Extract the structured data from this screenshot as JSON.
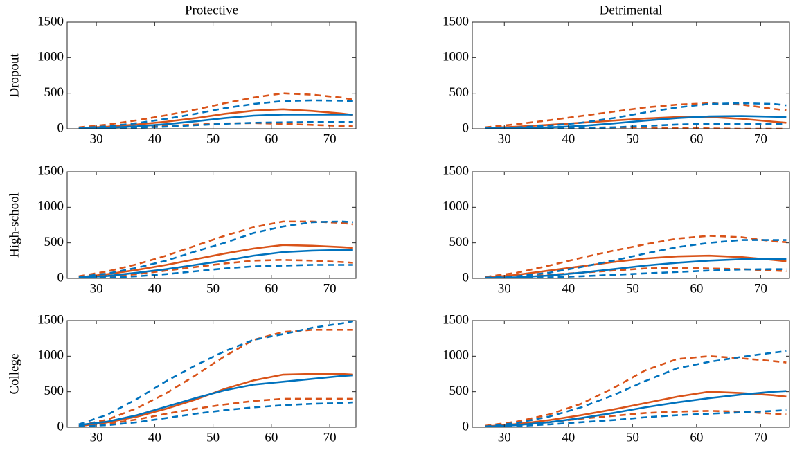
{
  "chart_data": [
    {
      "type": "line",
      "title": "Protective",
      "ylabel": "Dropout",
      "x": [
        27,
        32,
        37,
        42,
        47,
        52,
        57,
        62,
        67,
        72,
        74
      ],
      "series": [
        {
          "color": "#d95319",
          "dash": false,
          "values": [
            10,
            30,
            60,
            100,
            150,
            210,
            255,
            275,
            250,
            215,
            195
          ]
        },
        {
          "color": "#d95319",
          "dash": true,
          "values": [
            20,
            60,
            120,
            190,
            270,
            360,
            440,
            500,
            480,
            440,
            410
          ]
        },
        {
          "color": "#d95319",
          "dash": true,
          "values": [
            0,
            10,
            25,
            40,
            60,
            75,
            80,
            70,
            55,
            40,
            35
          ]
        },
        {
          "color": "#0072bd",
          "dash": false,
          "values": [
            5,
            15,
            35,
            65,
            105,
            150,
            185,
            200,
            200,
            200,
            200
          ]
        },
        {
          "color": "#0072bd",
          "dash": true,
          "values": [
            10,
            35,
            80,
            140,
            210,
            290,
            350,
            390,
            400,
            395,
            390
          ]
        },
        {
          "color": "#0072bd",
          "dash": true,
          "values": [
            0,
            5,
            15,
            30,
            50,
            70,
            85,
            90,
            95,
            95,
            95
          ]
        }
      ],
      "xlim": [
        25,
        74.5
      ],
      "xticks": [
        30,
        40,
        50,
        60,
        70
      ],
      "ylim": [
        0,
        1500
      ],
      "yticks": [
        0,
        500,
        1000,
        1500
      ]
    },
    {
      "type": "line",
      "title": "Detrimental",
      "x": [
        27,
        32,
        37,
        42,
        47,
        52,
        57,
        62,
        67,
        72,
        74
      ],
      "series": [
        {
          "color": "#d95319",
          "dash": false,
          "values": [
            10,
            30,
            55,
            85,
            115,
            145,
            165,
            165,
            140,
            100,
            85
          ]
        },
        {
          "color": "#d95319",
          "dash": true,
          "values": [
            20,
            65,
            120,
            180,
            240,
            300,
            340,
            360,
            340,
            280,
            260
          ]
        },
        {
          "color": "#d95319",
          "dash": true,
          "values": [
            0,
            5,
            10,
            15,
            20,
            20,
            15,
            5,
            0,
            0,
            0
          ]
        },
        {
          "color": "#0072bd",
          "dash": false,
          "values": [
            5,
            10,
            20,
            40,
            75,
            115,
            150,
            175,
            180,
            170,
            165
          ]
        },
        {
          "color": "#0072bd",
          "dash": true,
          "values": [
            5,
            20,
            45,
            85,
            150,
            230,
            300,
            350,
            360,
            350,
            330
          ]
        },
        {
          "color": "#0072bd",
          "dash": true,
          "values": [
            0,
            2,
            5,
            10,
            20,
            40,
            60,
            70,
            70,
            70,
            65
          ]
        }
      ],
      "xlim": [
        25,
        74.5
      ],
      "xticks": [
        30,
        40,
        50,
        60,
        70
      ],
      "ylim": [
        0,
        1500
      ],
      "yticks": [
        0,
        500,
        1000,
        1500
      ]
    },
    {
      "type": "line",
      "ylabel": "High-school",
      "x": [
        27,
        32,
        37,
        42,
        47,
        52,
        57,
        62,
        67,
        72,
        74
      ],
      "series": [
        {
          "color": "#d95319",
          "dash": false,
          "values": [
            15,
            60,
            120,
            190,
            270,
            350,
            420,
            470,
            460,
            440,
            430
          ]
        },
        {
          "color": "#d95319",
          "dash": true,
          "values": [
            30,
            100,
            200,
            320,
            460,
            600,
            720,
            800,
            800,
            780,
            760
          ]
        },
        {
          "color": "#d95319",
          "dash": true,
          "values": [
            5,
            25,
            60,
            110,
            160,
            210,
            250,
            260,
            250,
            230,
            220
          ]
        },
        {
          "color": "#0072bd",
          "dash": false,
          "values": [
            10,
            35,
            80,
            130,
            190,
            250,
            320,
            370,
            390,
            400,
            400
          ]
        },
        {
          "color": "#0072bd",
          "dash": true,
          "values": [
            20,
            70,
            150,
            250,
            380,
            500,
            640,
            730,
            790,
            800,
            790
          ]
        },
        {
          "color": "#0072bd",
          "dash": true,
          "values": [
            0,
            10,
            30,
            60,
            100,
            140,
            170,
            180,
            190,
            190,
            190
          ]
        }
      ],
      "xlim": [
        25,
        74.5
      ],
      "xticks": [
        30,
        40,
        50,
        60,
        70
      ],
      "ylim": [
        0,
        1500
      ],
      "yticks": [
        0,
        500,
        1000,
        1500
      ]
    },
    {
      "type": "line",
      "x": [
        27,
        32,
        37,
        42,
        47,
        52,
        57,
        62,
        67,
        72,
        74
      ],
      "series": [
        {
          "color": "#d95319",
          "dash": false,
          "values": [
            10,
            50,
            110,
            170,
            230,
            280,
            310,
            320,
            300,
            260,
            240
          ]
        },
        {
          "color": "#d95319",
          "dash": true,
          "values": [
            20,
            80,
            180,
            290,
            390,
            480,
            560,
            600,
            580,
            520,
            510
          ]
        },
        {
          "color": "#d95319",
          "dash": true,
          "values": [
            0,
            20,
            50,
            80,
            110,
            140,
            150,
            140,
            130,
            110,
            100
          ]
        },
        {
          "color": "#0072bd",
          "dash": false,
          "values": [
            5,
            15,
            40,
            80,
            130,
            180,
            220,
            250,
            270,
            270,
            270
          ]
        },
        {
          "color": "#0072bd",
          "dash": true,
          "values": [
            10,
            30,
            80,
            160,
            250,
            350,
            440,
            500,
            540,
            540,
            540
          ]
        },
        {
          "color": "#0072bd",
          "dash": true,
          "values": [
            0,
            5,
            15,
            30,
            50,
            70,
            90,
            110,
            125,
            130,
            130
          ]
        }
      ],
      "xlim": [
        25,
        74.5
      ],
      "xticks": [
        30,
        40,
        50,
        60,
        70
      ],
      "ylim": [
        0,
        1500
      ],
      "yticks": [
        0,
        500,
        1000,
        1500
      ]
    },
    {
      "type": "line",
      "ylabel": "College",
      "x": [
        27,
        32,
        37,
        42,
        47,
        52,
        57,
        62,
        67,
        72,
        74
      ],
      "series": [
        {
          "color": "#d95319",
          "dash": false,
          "values": [
            15,
            70,
            150,
            260,
            390,
            540,
            660,
            740,
            750,
            750,
            740
          ]
        },
        {
          "color": "#d95319",
          "dash": true,
          "values": [
            20,
            110,
            270,
            480,
            730,
            1000,
            1230,
            1340,
            1370,
            1370,
            1370
          ]
        },
        {
          "color": "#d95319",
          "dash": true,
          "values": [
            10,
            50,
            110,
            190,
            260,
            320,
            370,
            400,
            400,
            400,
            400
          ]
        },
        {
          "color": "#0072bd",
          "dash": false,
          "values": [
            30,
            80,
            170,
            290,
            410,
            520,
            600,
            640,
            680,
            720,
            730
          ]
        },
        {
          "color": "#0072bd",
          "dash": true,
          "values": [
            40,
            180,
            400,
            650,
            870,
            1070,
            1230,
            1310,
            1400,
            1460,
            1490
          ]
        },
        {
          "color": "#0072bd",
          "dash": true,
          "values": [
            10,
            30,
            70,
            130,
            190,
            240,
            280,
            310,
            330,
            340,
            350
          ]
        }
      ],
      "xlim": [
        25,
        74.5
      ],
      "xticks": [
        30,
        40,
        50,
        60,
        70
      ],
      "ylim": [
        0,
        1500
      ],
      "yticks": [
        0,
        500,
        1000,
        1500
      ]
    },
    {
      "type": "line",
      "x": [
        27,
        32,
        37,
        42,
        47,
        52,
        57,
        62,
        67,
        72,
        74
      ],
      "series": [
        {
          "color": "#d95319",
          "dash": false,
          "values": [
            10,
            45,
            100,
            170,
            250,
            340,
            430,
            500,
            480,
            450,
            430
          ]
        },
        {
          "color": "#d95319",
          "dash": true,
          "values": [
            20,
            80,
            180,
            330,
            550,
            800,
            960,
            1000,
            970,
            930,
            910
          ]
        },
        {
          "color": "#d95319",
          "dash": true,
          "values": [
            5,
            30,
            70,
            120,
            160,
            200,
            220,
            230,
            220,
            190,
            180
          ]
        },
        {
          "color": "#0072bd",
          "dash": false,
          "values": [
            5,
            30,
            70,
            130,
            200,
            280,
            350,
            410,
            460,
            500,
            510
          ]
        },
        {
          "color": "#0072bd",
          "dash": true,
          "values": [
            10,
            60,
            150,
            280,
            450,
            650,
            830,
            920,
            990,
            1050,
            1070
          ]
        },
        {
          "color": "#0072bd",
          "dash": true,
          "values": [
            0,
            15,
            40,
            70,
            100,
            140,
            170,
            190,
            210,
            230,
            240
          ]
        }
      ],
      "xlim": [
        25,
        74.5
      ],
      "xticks": [
        30,
        40,
        50,
        60,
        70
      ],
      "ylim": [
        0,
        1500
      ],
      "yticks": [
        0,
        500,
        1000,
        1500
      ]
    }
  ]
}
